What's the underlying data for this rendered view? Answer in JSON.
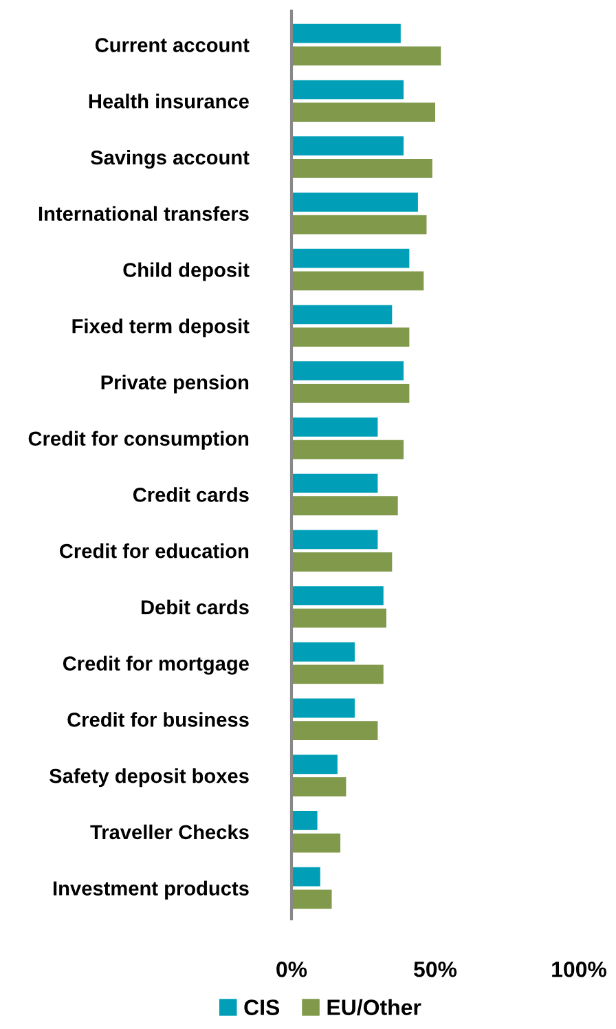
{
  "chart_data": {
    "type": "bar",
    "orientation": "horizontal",
    "categories": [
      "Current account",
      "Health insurance",
      "Savings account",
      "International transfers",
      "Child deposit",
      "Fixed term deposit",
      "Private pension",
      "Credit for consumption",
      "Credit cards",
      "Credit for education",
      "Debit cards",
      "Credit for mortgage",
      "Credit for business",
      "Safety deposit boxes",
      "Traveller Checks",
      "Investment products"
    ],
    "series": [
      {
        "name": "CIS",
        "color": "#009fb7",
        "values": [
          38,
          39,
          39,
          44,
          41,
          35,
          39,
          30,
          30,
          30,
          32,
          22,
          22,
          16,
          9,
          10
        ]
      },
      {
        "name": "EU/Other",
        "color": "#80994a",
        "values": [
          52,
          50,
          49,
          47,
          46,
          41,
          41,
          39,
          37,
          35,
          33,
          32,
          30,
          19,
          17,
          14
        ]
      }
    ],
    "xlim": [
      0,
      100
    ],
    "xticks": [
      {
        "value": 0,
        "label": "0%"
      },
      {
        "value": 50,
        "label": "50%"
      },
      {
        "value": 100,
        "label": "100%"
      }
    ],
    "grid": false,
    "legend": "bottom"
  }
}
